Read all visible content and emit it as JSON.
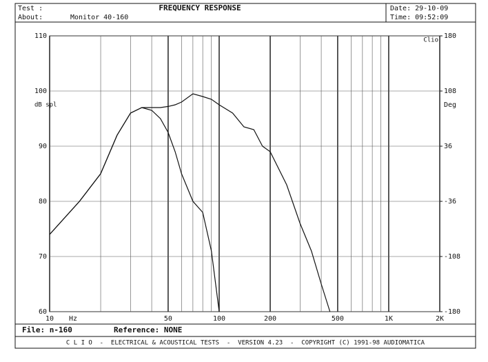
{
  "header": {
    "test_label": "Test :",
    "title": "FREQUENCY RESPONSE",
    "date": "Date: 29-10-09",
    "about_label": "About:",
    "about": "Monitor 40-160",
    "time": "Time: 09:52:09"
  },
  "footer": {
    "file": "File: n-160",
    "reference": "Reference: NONE",
    "banner": "C L I O  -  ELECTRICAL & ACOUSTICAL TESTS  -  VERSION 4.23  -  COPYRIGHT (C) 1991-98 AUDIOMATICA"
  },
  "chart_data": {
    "type": "line",
    "ylabel": "dB spl",
    "y2label": "Deg",
    "corner_label": "Clio",
    "xunit": "Hz",
    "log_x": true,
    "grid": true,
    "xlim": [
      10,
      2000
    ],
    "xticks": [
      10,
      50,
      100,
      200,
      500,
      {
        "value": 1000,
        "label": "1K"
      },
      {
        "value": 2000,
        "label": "2K"
      }
    ],
    "xminor": [
      20,
      30,
      40,
      60,
      70,
      80,
      90,
      300,
      400,
      600,
      700,
      800,
      900
    ],
    "ylim": [
      60,
      110
    ],
    "yticks": [
      60,
      70,
      80,
      90,
      100,
      110
    ],
    "y2lim": [
      -180,
      180
    ],
    "y2ticks": [
      -180,
      -108,
      -36,
      36,
      108,
      180
    ],
    "x": [
      10,
      15,
      20,
      25,
      30,
      35,
      40,
      45,
      50,
      55,
      60,
      70,
      80,
      90,
      100,
      120,
      140,
      160,
      180,
      200,
      250,
      300,
      350,
      400,
      450
    ],
    "series": [
      {
        "color": "#111111",
        "values": [
          74,
          80,
          85,
          92,
          96,
          97,
          97,
          97,
          97.2,
          97.5,
          98,
          99.5,
          99,
          98.5,
          97.5,
          96,
          93.5,
          93,
          90,
          89,
          83,
          76,
          71,
          65,
          60
        ]
      },
      {
        "color": "#111111",
        "values": [
          74,
          80,
          85,
          92,
          96,
          97,
          96.5,
          95,
          92.5,
          89,
          85,
          80,
          78,
          71,
          60,
          null,
          null,
          null,
          null,
          null,
          null,
          null,
          null,
          null,
          null
        ]
      }
    ]
  }
}
